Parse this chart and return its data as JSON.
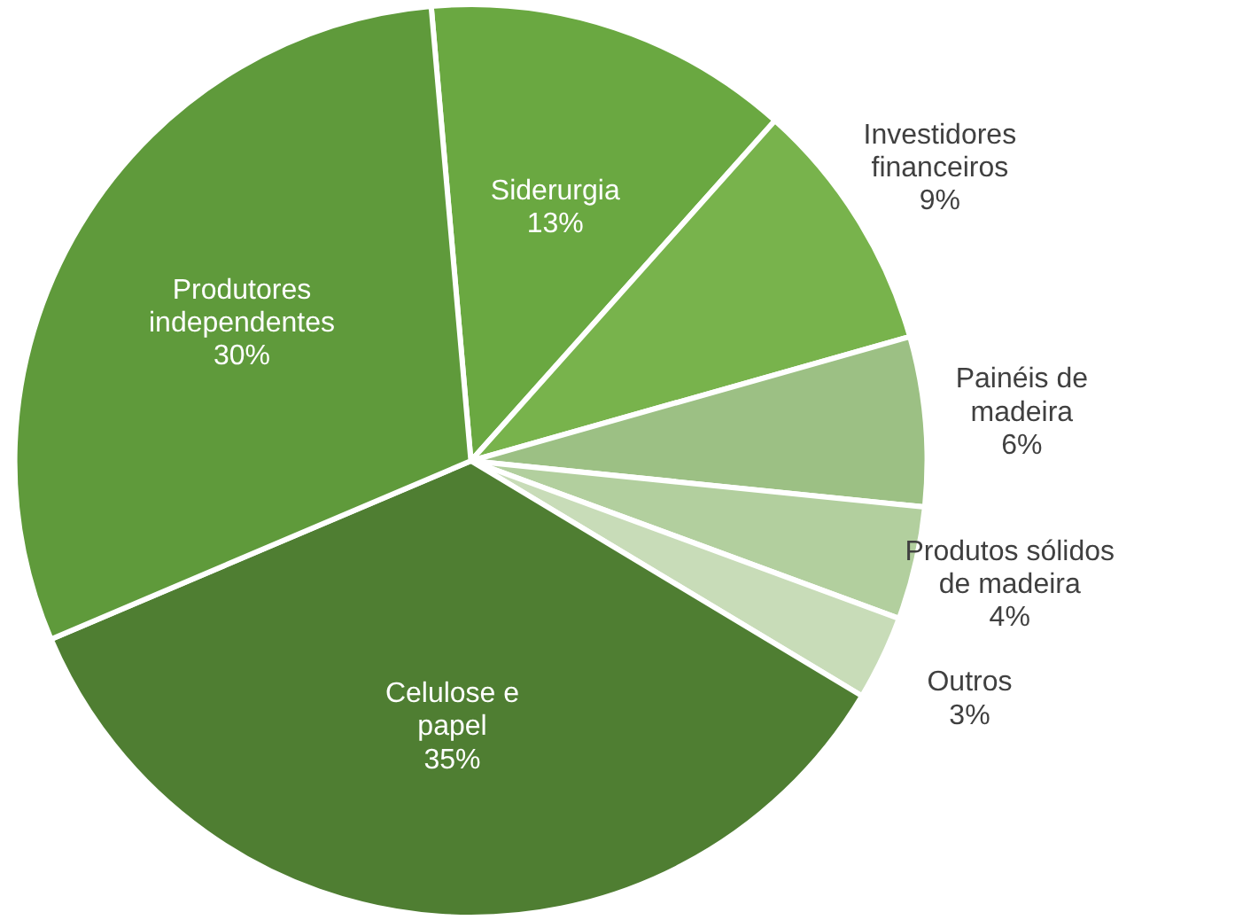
{
  "chart_data": {
    "type": "pie",
    "categories": [
      "Siderurgia",
      "Investidores financeiros",
      "Painéis de madeira",
      "Produtos sólidos de madeira",
      "Outros",
      "Celulose e papel",
      "Produtores independentes"
    ],
    "values": [
      13,
      9,
      6,
      4,
      3,
      35,
      30
    ],
    "colors": [
      "#6aa841",
      "#78b34c",
      "#9cc084",
      "#b2cf9e",
      "#c8dcb8",
      "#4f7e32",
      "#5f9a3b"
    ],
    "value_labels": [
      "13%",
      "9%",
      "6%",
      "4%",
      "3%",
      "35%",
      "30%"
    ]
  }
}
